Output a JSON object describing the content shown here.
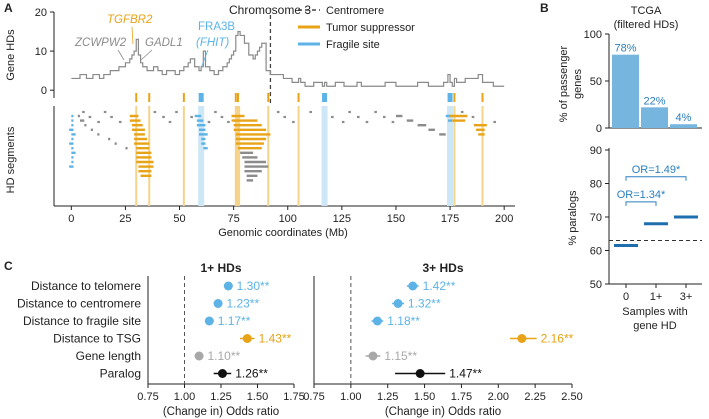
{
  "colors": {
    "gray": "#8c8c8c",
    "orange": "#e8a317",
    "blue": "#5db3e6",
    "bar_blue": "#76b5dd",
    "dark_blue": "#1f6fae",
    "black": "#111111",
    "light_orange": "#f6d38a",
    "light_blue": "#cde7f6"
  },
  "panels": {
    "A": {
      "letter": "A"
    },
    "B": {
      "letter": "B"
    },
    "C": {
      "letter": "C"
    }
  },
  "chart_data": [
    {
      "id": "A-top",
      "type": "line",
      "title": "Chromosome 3",
      "ylabel": "Gene HDs",
      "ylim": [
        -2,
        20
      ],
      "yticks": [
        0,
        10,
        20
      ],
      "xlim": [
        -8,
        205
      ],
      "centromere_mb": 92,
      "legend": [
        {
          "label": "Centromere",
          "style": "dashed",
          "color": "#444444"
        },
        {
          "label": "Tumor suppressor",
          "style": "solid",
          "color": "#e8a317"
        },
        {
          "label": "Fragile site",
          "style": "solid",
          "color": "#5db3e6"
        }
      ],
      "annotations": [
        {
          "text": "ZCWPW2",
          "color": "gray",
          "italic": true,
          "x": 18,
          "y": 14
        },
        {
          "text": "TGFBR2",
          "color": "orange",
          "italic": true,
          "x": 30,
          "y": 19
        },
        {
          "text": "GADL1",
          "color": "gray",
          "italic": true,
          "x": 40,
          "y": 14
        },
        {
          "text": "FRA3B",
          "color": "blue",
          "italic": false,
          "x": 60,
          "y": 17
        },
        {
          "text": "(FHIT)",
          "color": "blue",
          "italic": true,
          "x": 60,
          "y": 12
        }
      ],
      "tsg_positions": [
        30,
        36,
        52,
        76,
        77,
        91,
        105,
        177,
        190
      ],
      "fragile_positions": [
        60,
        117,
        175
      ],
      "series": [
        {
          "name": "Gene HDs",
          "x": [
            0,
            3,
            4,
            6,
            7,
            9,
            10,
            12,
            13,
            15,
            17,
            18,
            20,
            22,
            24,
            25,
            27,
            28,
            29,
            30,
            31,
            32,
            33,
            34,
            35,
            36,
            38,
            40,
            42,
            44,
            46,
            48,
            50,
            52,
            54,
            55,
            57,
            59,
            60,
            61,
            62,
            64,
            66,
            68,
            70,
            72,
            73,
            74,
            75,
            76,
            77,
            78,
            80,
            82,
            84,
            85,
            86,
            87,
            88,
            90,
            92,
            95,
            98,
            100,
            102,
            104,
            105,
            106,
            108,
            110,
            112,
            114,
            116,
            117,
            118,
            120,
            122,
            124,
            126,
            128,
            130,
            132,
            134,
            136,
            140,
            145,
            150,
            155,
            160,
            165,
            170,
            172,
            174,
            175,
            176,
            177,
            178,
            180,
            182,
            185,
            188,
            190,
            192,
            195,
            198
          ],
          "y": [
            3,
            3,
            4,
            4,
            3,
            3,
            4,
            4,
            3,
            4,
            4,
            5,
            5,
            6,
            6,
            7,
            8,
            9,
            10,
            13,
            9,
            7,
            6,
            6,
            5,
            5,
            6,
            5,
            4,
            5,
            5,
            4,
            5,
            6,
            7,
            8,
            6,
            5,
            6,
            10,
            6,
            5,
            4,
            5,
            6,
            7,
            8,
            9,
            10,
            14,
            15,
            14,
            12,
            9,
            8,
            9,
            10,
            11,
            12,
            5,
            4,
            4,
            3,
            3,
            2,
            2,
            3,
            2,
            1,
            1,
            2,
            2,
            1,
            2,
            1,
            1,
            2,
            2,
            1,
            1,
            1,
            2,
            1,
            1,
            1,
            2,
            1,
            1,
            2,
            1,
            1,
            2,
            4,
            2,
            1,
            3,
            2,
            2,
            3,
            3,
            4,
            2,
            2,
            1,
            1
          ]
        }
      ]
    },
    {
      "id": "A-bottom",
      "type": "scatter",
      "title": "",
      "ylabel": "HD segments",
      "xlabel": "Genomic coordinates (Mb)",
      "xlim": [
        -8,
        205
      ],
      "xticks": [
        0,
        25,
        50,
        75,
        100,
        125,
        150,
        175,
        200
      ],
      "segment_groups": [
        {
          "color": "blue",
          "segments": [
            [
              0,
              1
            ],
            [
              0,
              1
            ],
            [
              0,
              1
            ],
            [
              -1,
              1
            ],
            [
              0,
              2
            ],
            [
              0,
              1
            ],
            [
              -1,
              1
            ],
            [
              0,
              1
            ],
            [
              0,
              2
            ],
            [
              0,
              1
            ],
            [
              0,
              1
            ],
            [
              -1,
              1
            ]
          ]
        },
        {
          "color": "gray",
          "segments": [
            [
              3,
              4
            ],
            [
              4,
              6
            ],
            [
              6,
              7
            ],
            [
              9,
              10
            ],
            [
              12,
              13
            ],
            [
              17,
              18
            ],
            [
              20,
              21
            ],
            [
              25,
              26
            ]
          ]
        },
        {
          "color": "orange",
          "segments": [
            [
              27,
              31
            ],
            [
              27,
              32
            ],
            [
              28,
              33
            ],
            [
              28,
              34
            ],
            [
              29,
              34
            ],
            [
              29,
              35
            ],
            [
              29,
              36
            ],
            [
              30,
              36
            ],
            [
              30,
              37
            ],
            [
              30,
              37
            ],
            [
              30,
              38
            ],
            [
              31,
              38
            ],
            [
              31,
              37
            ],
            [
              32,
              37
            ]
          ]
        },
        {
          "color": "blue",
          "segments": [
            [
              57,
              60
            ],
            [
              58,
              61
            ],
            [
              58,
              62
            ],
            [
              59,
              62
            ],
            [
              59,
              63
            ],
            [
              60,
              62
            ],
            [
              60,
              62
            ],
            [
              61,
              63
            ]
          ]
        },
        {
          "color": "orange",
          "segments": [
            [
              74,
              80
            ],
            [
              74,
              86
            ],
            [
              75,
              88
            ],
            [
              75,
              90
            ],
            [
              76,
              92
            ],
            [
              76,
              90
            ],
            [
              76,
              89
            ],
            [
              77,
              88
            ]
          ]
        },
        {
          "color": "gray",
          "segments": [
            [
              78,
              84
            ],
            [
              79,
              86
            ],
            [
              80,
              90
            ],
            [
              80,
              91
            ],
            [
              80,
              88
            ],
            [
              81,
              86
            ],
            [
              81,
              84
            ]
          ]
        },
        {
          "color": "gray",
          "segments": [
            [
              150,
              153
            ],
            [
              155,
              158
            ],
            [
              160,
              164
            ],
            [
              165,
              168
            ],
            [
              170,
              173
            ]
          ]
        },
        {
          "color": "blue",
          "segments": [
            [
              173,
              176
            ],
            [
              174,
              176
            ]
          ]
        },
        {
          "color": "orange",
          "segments": [
            [
              175,
              183
            ],
            [
              176,
              182
            ],
            [
              186,
              192
            ],
            [
              187,
              191
            ],
            [
              188,
              191
            ]
          ]
        }
      ]
    },
    {
      "id": "B-top",
      "type": "bar",
      "title": "TCGA\n(filtered HDs)",
      "title_lines": [
        "TCGA",
        "(filtered HDs)"
      ],
      "ylabel": "% of passenger genes",
      "ylabel_lines": [
        "% of passenger",
        "genes"
      ],
      "categories": [
        "0",
        "1+",
        "3+"
      ],
      "values": [
        78,
        22,
        4
      ],
      "labels": [
        "78%",
        "22%",
        "4%"
      ],
      "ylim": [
        0,
        100
      ],
      "yticks": [
        0,
        50,
        100
      ]
    },
    {
      "id": "B-bottom",
      "type": "scatter",
      "ylabel": "% paralogs",
      "xlabel": "Samples with gene HD",
      "xlabel_lines": [
        "Samples with",
        "gene HD"
      ],
      "categories": [
        "0",
        "1+",
        "3+"
      ],
      "values": [
        61.5,
        68,
        70
      ],
      "reference_line": 63,
      "ylim": [
        50,
        90
      ],
      "yticks": [
        50,
        60,
        70,
        80,
        90
      ],
      "brackets": [
        {
          "text": "OR=1.34*",
          "from": "0",
          "to": "1+"
        },
        {
          "text": "OR=1.49*",
          "from": "0",
          "to": "3+"
        }
      ]
    },
    {
      "id": "C",
      "type": "scatter",
      "xlabel": "(Change in) Odds ratio",
      "rows": [
        "Distance to telomere",
        "Distance to centromere",
        "Distance to fragile site",
        "Distance to TSG",
        "Gene length",
        "Paralog"
      ],
      "row_colors": [
        "blue",
        "blue",
        "blue",
        "orange",
        "gray",
        "black"
      ],
      "series": [
        {
          "name": "1+ HDs",
          "xlim": [
            0.75,
            1.75
          ],
          "xticks": [
            "0.75",
            "1.00",
            "1.25",
            "1.50",
            "1.75"
          ],
          "values": [
            1.3,
            1.23,
            1.17,
            1.43,
            1.1,
            1.26
          ],
          "low": [
            1.27,
            1.2,
            1.14,
            1.38,
            1.07,
            1.2
          ],
          "high": [
            1.33,
            1.26,
            1.2,
            1.48,
            1.13,
            1.32
          ],
          "labels": [
            "1.30**",
            "1.23**",
            "1.17**",
            "1.43**",
            "1.10**",
            "1.26**"
          ]
        },
        {
          "name": "3+ HDs",
          "xlim": [
            0.75,
            2.5
          ],
          "xticks": [
            "0.75",
            "1.00",
            "1.25",
            "1.50",
            "1.75",
            "2.00",
            "2.25",
            "2.50"
          ],
          "values": [
            1.42,
            1.32,
            1.18,
            2.16,
            1.15,
            1.47
          ],
          "low": [
            1.38,
            1.28,
            1.14,
            2.08,
            1.1,
            1.3
          ],
          "high": [
            1.46,
            1.36,
            1.22,
            2.26,
            1.2,
            1.64
          ],
          "labels": [
            "1.42**",
            "1.32**",
            "1.18**",
            "2.16**",
            "1.15**",
            "1.47**"
          ]
        }
      ]
    }
  ]
}
